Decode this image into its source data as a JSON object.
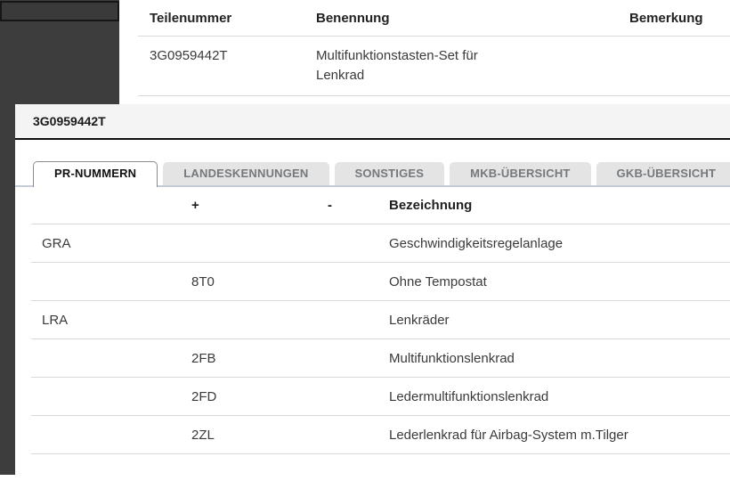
{
  "top_table": {
    "columns": {
      "teilenummer": "Teilenummer",
      "benennung": "Benennung",
      "bemerkung": "Bemerkung"
    },
    "row": {
      "teilenummer": "3G0959442T",
      "benennung": "Multifunktionstasten-Set für Lenkrad",
      "bemerkung": ""
    }
  },
  "dialog": {
    "title": "3G0959442T",
    "tabs": [
      {
        "label": "PR-NUMMERN",
        "active": true
      },
      {
        "label": "LANDESKENNUNGEN",
        "active": false
      },
      {
        "label": "SONSTIGES",
        "active": false
      },
      {
        "label": "MKB-ÜBERSICHT",
        "active": false
      },
      {
        "label": "GKB-ÜBERSICHT",
        "active": false
      }
    ],
    "table": {
      "headers": {
        "code": "",
        "plus": "+",
        "minus": "-",
        "bezeichnung": "Bezeichnung"
      },
      "rows": [
        {
          "code": "GRA",
          "plus": "",
          "minus": "",
          "bezeichnung": "Geschwindigkeitsregelanlage"
        },
        {
          "code": "",
          "plus": "8T0",
          "minus": "",
          "bezeichnung": "Ohne Tempostat"
        },
        {
          "code": "LRA",
          "plus": "",
          "minus": "",
          "bezeichnung": "Lenkräder"
        },
        {
          "code": "",
          "plus": "2FB",
          "minus": "",
          "bezeichnung": "Multifunktionslenkrad"
        },
        {
          "code": "",
          "plus": "2FD",
          "minus": "",
          "bezeichnung": "Ledermultifunktionslenkrad"
        },
        {
          "code": "",
          "plus": "2ZL",
          "minus": "",
          "bezeichnung": "Lederlenkrad für Airbag-System m.Tilger"
        }
      ]
    }
  },
  "colors": {
    "backdrop": "#3d3d3d",
    "dialog_header_bg": "#f4f4f4",
    "dialog_header_border": "#111111",
    "tab_inactive_bg": "#e4e4e4",
    "tab_inactive_text": "#75797c",
    "tab_divider": "#c4cdd5",
    "row_divider": "#d9d9d9"
  }
}
